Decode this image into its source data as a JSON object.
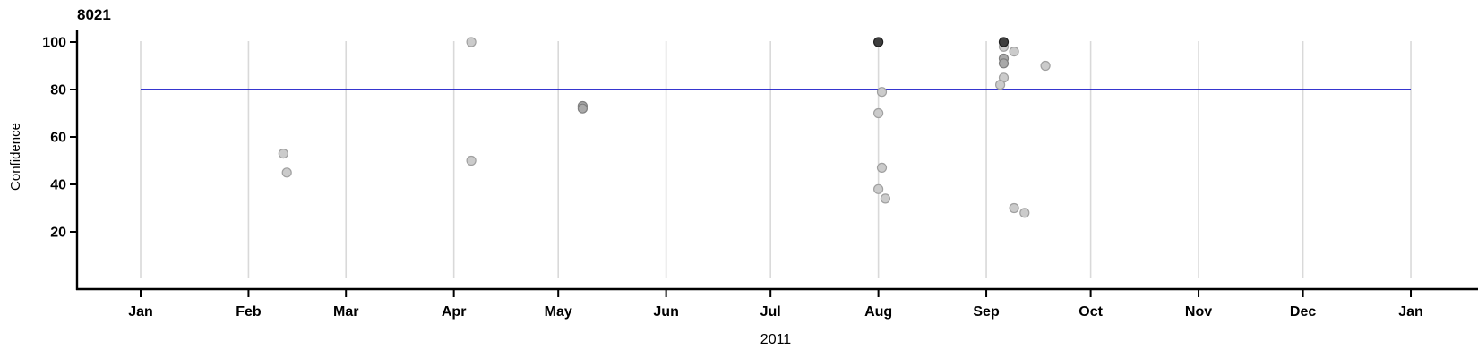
{
  "chart_data": {
    "type": "scatter",
    "title": "8021",
    "xlabel": "2011",
    "ylabel": "Confidence",
    "x_axis": {
      "start": "2011-01-01",
      "end": "2012-01-01",
      "tick_labels": [
        "Jan",
        "Feb",
        "Mar",
        "Apr",
        "May",
        "Jun",
        "Jul",
        "Aug",
        "Sep",
        "Oct",
        "Nov",
        "Dec",
        "Jan"
      ],
      "year_label": "2011"
    },
    "y_axis": {
      "label": "Confidence",
      "ticks": [
        20,
        40,
        60,
        80,
        100
      ],
      "range": [
        0,
        105
      ]
    },
    "grid": {
      "vertical_month_lines": true,
      "color": "#d9d9d9"
    },
    "reference_line": {
      "value": 80,
      "color": "#1a1ac8",
      "span": [
        "2011-01-01",
        "2012-01-01"
      ]
    },
    "point_style": {
      "radius_px": 5,
      "shades": {
        "light": {
          "fill": "#cbcbcb",
          "stroke": "#a0a0a0"
        },
        "medium": {
          "fill": "#a9a9a9",
          "stroke": "#7f7f7f"
        },
        "dark": {
          "fill": "#3e3e3e",
          "stroke": "#1f1f1f"
        }
      }
    },
    "points": [
      {
        "date": "2011-02-11",
        "value": 53,
        "shade": "light"
      },
      {
        "date": "2011-02-12",
        "value": 45,
        "shade": "light"
      },
      {
        "date": "2011-04-06",
        "value": 100,
        "shade": "light"
      },
      {
        "date": "2011-04-06",
        "value": 50,
        "shade": "light"
      },
      {
        "date": "2011-05-08",
        "value": 73,
        "shade": "medium"
      },
      {
        "date": "2011-05-08",
        "value": 72,
        "shade": "medium"
      },
      {
        "date": "2011-08-01",
        "value": 100,
        "shade": "dark"
      },
      {
        "date": "2011-08-02",
        "value": 79,
        "shade": "light"
      },
      {
        "date": "2011-08-01",
        "value": 70,
        "shade": "light"
      },
      {
        "date": "2011-08-02",
        "value": 47,
        "shade": "light"
      },
      {
        "date": "2011-08-01",
        "value": 38,
        "shade": "light"
      },
      {
        "date": "2011-08-03",
        "value": 34,
        "shade": "light"
      },
      {
        "date": "2011-09-06",
        "value": 98,
        "shade": "light"
      },
      {
        "date": "2011-09-06",
        "value": 100,
        "shade": "dark"
      },
      {
        "date": "2011-09-09",
        "value": 96,
        "shade": "light"
      },
      {
        "date": "2011-09-06",
        "value": 93,
        "shade": "medium"
      },
      {
        "date": "2011-09-06",
        "value": 91,
        "shade": "medium"
      },
      {
        "date": "2011-09-06",
        "value": 85,
        "shade": "light"
      },
      {
        "date": "2011-09-05",
        "value": 82,
        "shade": "light"
      },
      {
        "date": "2011-09-18",
        "value": 90,
        "shade": "light"
      },
      {
        "date": "2011-09-09",
        "value": 30,
        "shade": "light"
      },
      {
        "date": "2011-09-12",
        "value": 28,
        "shade": "light"
      }
    ]
  },
  "colors": {
    "background": "#ffffff",
    "axis": "#000000",
    "text": "#000000",
    "grid": "#d9d9d9",
    "reference_line": "#1a1ac8"
  }
}
